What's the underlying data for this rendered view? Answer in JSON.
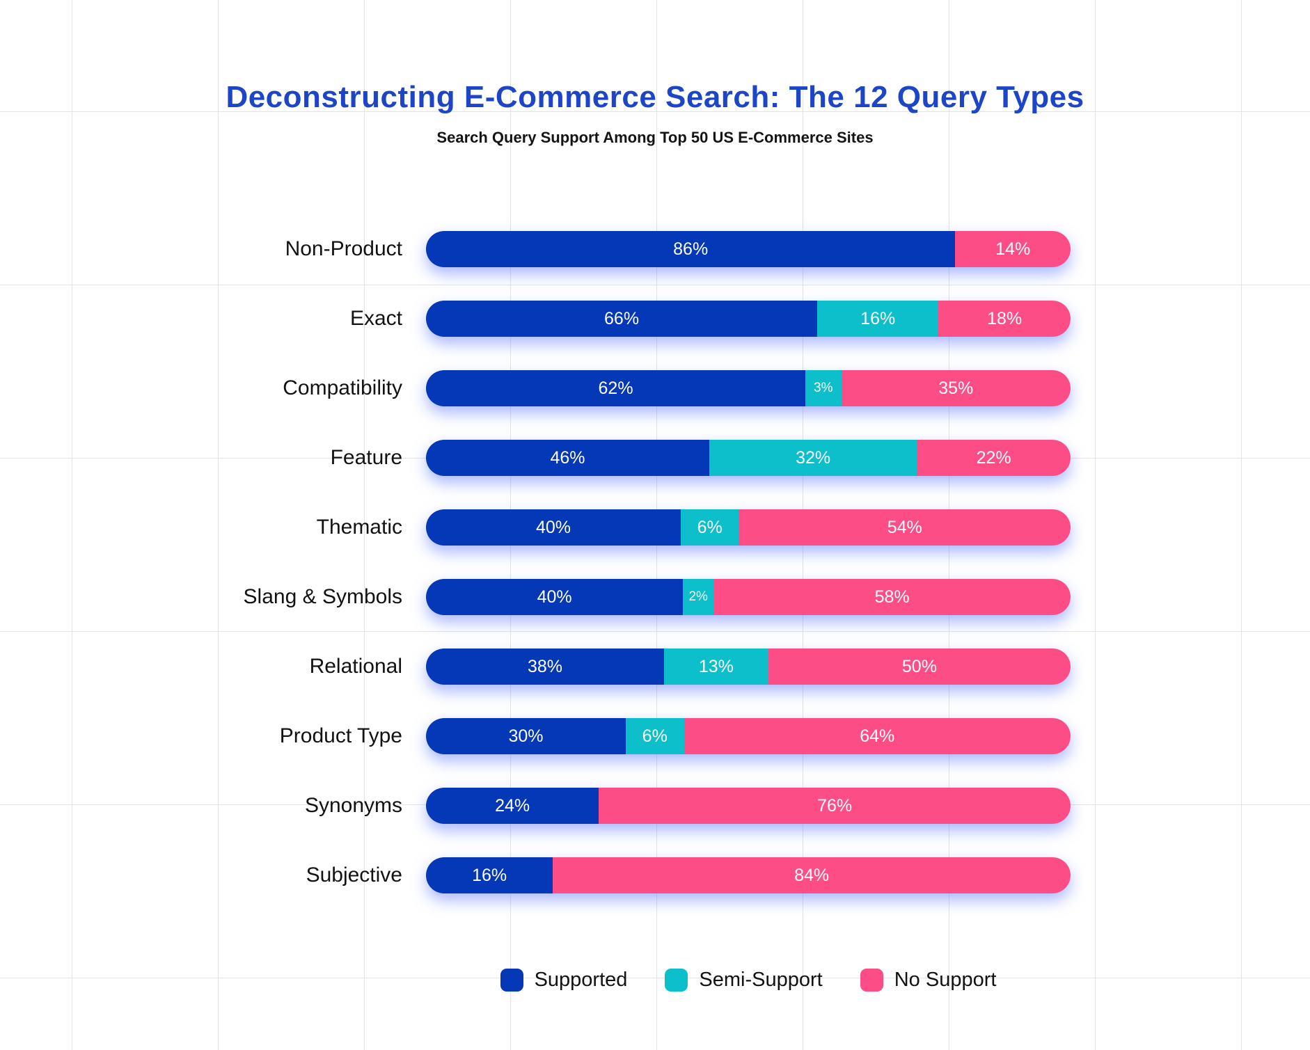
{
  "title": "Deconstructing E-Commerce Search: The 12 Query Types",
  "subtitle": "Search Query Support Among Top 50 US E-Commerce Sites",
  "colors": {
    "title_blue": "#1c45c8",
    "supported": "#0438b6",
    "semi_support": "#0cbfca",
    "no_support": "#fc4d87",
    "grid_line": "#e3e3e3",
    "label_text": "#121212",
    "value_text": "#ffffff"
  },
  "legend": [
    {
      "key": "supported",
      "label": "Supported",
      "color": "#0438b6"
    },
    {
      "key": "semi-support",
      "label": "Semi-Support",
      "color": "#0cbfca"
    },
    {
      "key": "no-support",
      "label": "No Support",
      "color": "#fc4d87"
    }
  ],
  "chart_data": {
    "type": "bar",
    "stacked": true,
    "orientation": "horizontal",
    "units": "percent",
    "value_suffix": "%",
    "grid": true,
    "legend_position": "bottom",
    "title": "Deconstructing E-Commerce Search: The 12 Query Types",
    "subtitle": "Search Query Support Among Top 50 US E-Commerce Sites",
    "categories": [
      "Non-Product",
      "Exact",
      "Compatibility",
      "Feature",
      "Thematic",
      "Slang & Symbols",
      "Relational",
      "Product Type",
      "Synonyms",
      "Subjective"
    ],
    "series": [
      {
        "name": "Supported",
        "key": "supported",
        "color": "#0438b6",
        "values": [
          86,
          66,
          62,
          46,
          40,
          40,
          38,
          30,
          24,
          16
        ]
      },
      {
        "name": "Semi-Support",
        "key": "semi-support",
        "color": "#0cbfca",
        "values": [
          0,
          16,
          3,
          32,
          6,
          2,
          13,
          6,
          0,
          0
        ]
      },
      {
        "name": "No Support",
        "key": "no-support",
        "color": "#fc4d87",
        "values": [
          14,
          18,
          35,
          22,
          54,
          58,
          50,
          64,
          76,
          84
        ]
      }
    ]
  }
}
